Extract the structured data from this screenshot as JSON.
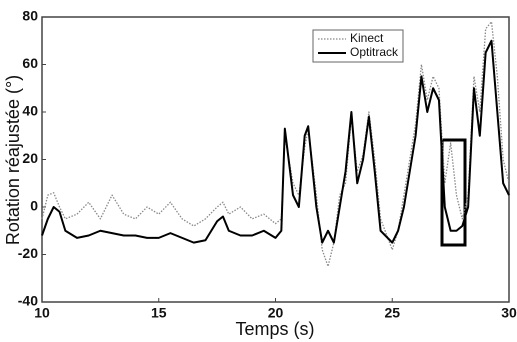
{
  "chart_data": {
    "type": "line",
    "xlabel": "Temps (s)",
    "ylabel": "Rotation réajustée (°)",
    "x": [
      10,
      10.25,
      10.5,
      10.75,
      11,
      11.5,
      12,
      12.5,
      13,
      13.5,
      14,
      14.5,
      15,
      15.5,
      16,
      16.5,
      17,
      17.5,
      17.75,
      18,
      18.5,
      19,
      19.5,
      20,
      20.25,
      20.4,
      20.75,
      21,
      21.25,
      21.4,
      21.75,
      22,
      22.25,
      22.5,
      22.75,
      23,
      23.25,
      23.5,
      23.75,
      24,
      24.25,
      24.5,
      25,
      25.25,
      25.5,
      26,
      26.25,
      26.5,
      26.75,
      27,
      27.25,
      27.5,
      27.75,
      28,
      28.25,
      28.5,
      28.75,
      29,
      29.25,
      29.5,
      29.75,
      30
    ],
    "series": [
      {
        "name": "Kinect",
        "color": "#888888",
        "style": "dotted",
        "values": [
          -5,
          5,
          6,
          0,
          -5,
          -3,
          2,
          -5,
          5,
          -3,
          -5,
          0,
          -3,
          2,
          -5,
          -8,
          -5,
          0,
          2,
          -3,
          0,
          -5,
          -3,
          -7,
          -5,
          30,
          10,
          5,
          25,
          33,
          5,
          -18,
          -25,
          -15,
          5,
          10,
          38,
          15,
          22,
          40,
          20,
          -5,
          -18,
          -10,
          5,
          35,
          60,
          45,
          55,
          50,
          10,
          27,
          5,
          -5,
          5,
          55,
          40,
          75,
          78,
          55,
          20,
          10
        ]
      },
      {
        "name": "Optitrack",
        "color": "#000000",
        "style": "solid",
        "values": [
          -12,
          -5,
          0,
          -2,
          -10,
          -13,
          -12,
          -10,
          -11,
          -12,
          -12,
          -13,
          -13,
          -11,
          -13,
          -15,
          -14,
          -6,
          -4,
          -10,
          -12,
          -12,
          -10,
          -13,
          -10,
          33,
          5,
          0,
          30,
          34,
          0,
          -15,
          -10,
          -15,
          0,
          15,
          40,
          10,
          20,
          38,
          15,
          -10,
          -15,
          -10,
          0,
          30,
          55,
          40,
          50,
          45,
          0,
          -10,
          -10,
          -8,
          0,
          50,
          30,
          65,
          70,
          40,
          10,
          5
        ]
      }
    ],
    "xlim": [
      10,
      30
    ],
    "xticks": [
      10,
      15,
      20,
      25,
      30
    ],
    "ylim": [
      -40,
      80
    ],
    "yticks": [
      -40,
      -20,
      0,
      20,
      40,
      60,
      80
    ],
    "grid": false,
    "legend": "upper right"
  }
}
